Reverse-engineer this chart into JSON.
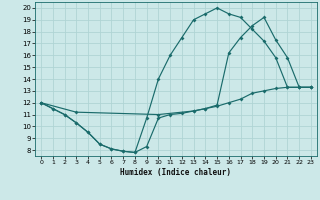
{
  "xlabel": "Humidex (Indice chaleur)",
  "bg_color": "#cce8e8",
  "line_color": "#1a6b6b",
  "grid_color": "#b0d4d4",
  "xlim": [
    -0.5,
    23.5
  ],
  "ylim": [
    7.5,
    20.5
  ],
  "xticks": [
    0,
    1,
    2,
    3,
    4,
    5,
    6,
    7,
    8,
    9,
    10,
    11,
    12,
    13,
    14,
    15,
    16,
    17,
    18,
    19,
    20,
    21,
    22,
    23
  ],
  "yticks": [
    8,
    9,
    10,
    11,
    12,
    13,
    14,
    15,
    16,
    17,
    18,
    19,
    20
  ],
  "line1_x": [
    0,
    1,
    2,
    3,
    4,
    5,
    6,
    7,
    8,
    9,
    10,
    11,
    12,
    13,
    14,
    15,
    16,
    17,
    18,
    19,
    20,
    21,
    22,
    23
  ],
  "line1_y": [
    12.0,
    11.5,
    11.0,
    10.3,
    9.5,
    8.5,
    8.1,
    7.9,
    7.8,
    8.3,
    10.7,
    11.0,
    11.1,
    11.3,
    11.5,
    11.7,
    12.0,
    12.3,
    12.8,
    13.0,
    13.2,
    13.3,
    13.3,
    13.3
  ],
  "line2_x": [
    0,
    1,
    2,
    3,
    4,
    5,
    6,
    7,
    8,
    9,
    10,
    11,
    12,
    13,
    14,
    15,
    16,
    17,
    18,
    19,
    20,
    21,
    22,
    23
  ],
  "line2_y": [
    12.0,
    11.5,
    11.0,
    10.3,
    9.5,
    8.5,
    8.1,
    7.9,
    7.8,
    10.7,
    14.0,
    16.0,
    17.5,
    19.0,
    19.5,
    20.0,
    19.5,
    19.2,
    18.2,
    17.2,
    15.8,
    13.3,
    13.3,
    13.3
  ],
  "line3_x": [
    0,
    3,
    10,
    13,
    14,
    15,
    16,
    17,
    18,
    19,
    20,
    21,
    22,
    23
  ],
  "line3_y": [
    12.0,
    11.2,
    11.0,
    11.3,
    11.5,
    11.8,
    16.2,
    17.5,
    18.5,
    19.2,
    17.3,
    15.8,
    13.3,
    13.3
  ]
}
